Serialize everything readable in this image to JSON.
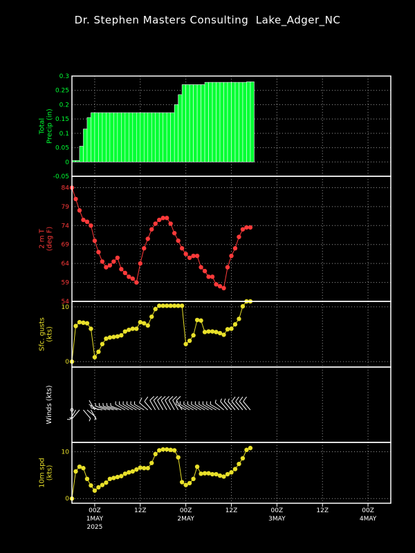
{
  "title": "Dr. Stephen Masters Consulting  Lake_Adger_NC",
  "colors": {
    "precip": "#00ff33",
    "temp": "#ff3a3a",
    "gust": "#e8e02a",
    "wind": "#ffffff",
    "spd": "#e8e02a"
  },
  "x_axis": {
    "ticks": [
      {
        "t": 6,
        "label": "00Z",
        "sub": "1MAY",
        "sub2": "2025"
      },
      {
        "t": 18,
        "label": "12Z",
        "sub": "",
        "sub2": ""
      },
      {
        "t": 30,
        "label": "00Z",
        "sub": "2MAY",
        "sub2": ""
      },
      {
        "t": 42,
        "label": "12Z",
        "sub": "",
        "sub2": ""
      },
      {
        "t": 54,
        "label": "00Z",
        "sub": "3MAY",
        "sub2": ""
      },
      {
        "t": 66,
        "label": "12Z",
        "sub": "",
        "sub2": ""
      },
      {
        "t": 78,
        "label": "00Z",
        "sub": "4MAY",
        "sub2": ""
      }
    ]
  },
  "chart_data": [
    {
      "type": "bar",
      "ylabel_lines": [
        "Total",
        "Precip (in)"
      ],
      "ylim": [
        -0.05,
        0.3
      ],
      "yticks": [
        -0.05,
        0,
        0.05,
        0.1,
        0.15,
        0.2,
        0.25,
        0.3
      ],
      "ytick_labels": [
        "-0.05",
        "0",
        "0.05",
        "0.1",
        "0.15",
        "0.2",
        "0.25",
        "0.3"
      ],
      "x": [
        0,
        1,
        2,
        3,
        4,
        5,
        6,
        7,
        8,
        9,
        10,
        11,
        12,
        13,
        14,
        15,
        16,
        17,
        18,
        19,
        20,
        21,
        22,
        23,
        24,
        25,
        26,
        27,
        28,
        29,
        30,
        31,
        32,
        33,
        34,
        35,
        36,
        37,
        38,
        39,
        40,
        41,
        42,
        43,
        44,
        45,
        46,
        47
      ],
      "values": [
        0.005,
        0.005,
        0.055,
        0.115,
        0.155,
        0.172,
        0.172,
        0.172,
        0.172,
        0.172,
        0.172,
        0.172,
        0.172,
        0.172,
        0.172,
        0.172,
        0.172,
        0.172,
        0.172,
        0.172,
        0.172,
        0.172,
        0.172,
        0.172,
        0.172,
        0.172,
        0.172,
        0.2,
        0.235,
        0.27,
        0.27,
        0.27,
        0.27,
        0.27,
        0.27,
        0.278,
        0.278,
        0.278,
        0.278,
        0.278,
        0.278,
        0.278,
        0.278,
        0.278,
        0.278,
        0.278,
        0.28,
        0.28
      ]
    },
    {
      "type": "line",
      "ylabel_lines": [
        "2 m T",
        "(deg F)"
      ],
      "ylim": [
        54,
        87
      ],
      "yticks": [
        54,
        59,
        64,
        69,
        74,
        79,
        84
      ],
      "ytick_labels": [
        "54",
        "59",
        "64",
        "69",
        "74",
        "79",
        "84"
      ],
      "x": [
        0,
        1,
        2,
        3,
        4,
        5,
        6,
        7,
        8,
        9,
        10,
        11,
        12,
        13,
        14,
        15,
        16,
        17,
        18,
        19,
        20,
        21,
        22,
        23,
        24,
        25,
        26,
        27,
        28,
        29,
        30,
        31,
        32,
        33,
        34,
        35,
        36,
        37,
        38,
        39,
        40,
        41,
        42,
        43,
        44,
        45,
        46,
        47
      ],
      "values": [
        84,
        81,
        78,
        75.5,
        75,
        74,
        70,
        67,
        64.5,
        63,
        63.5,
        64.5,
        65.5,
        62.5,
        61.5,
        60.5,
        60,
        59,
        64,
        68,
        70.5,
        73,
        74.5,
        75.5,
        76,
        76,
        74.5,
        72,
        70,
        68,
        66.5,
        65.5,
        66,
        66,
        63,
        62,
        60.5,
        60.5,
        58.5,
        58,
        57.5,
        63,
        66,
        68,
        71,
        73,
        73.5,
        73.5
      ]
    },
    {
      "type": "line",
      "ylabel_lines": [
        "Sfc. gusts",
        "(kts)"
      ],
      "ylim": [
        -1,
        11
      ],
      "yticks": [
        0,
        10
      ],
      "ytick_labels": [
        "0",
        "10"
      ],
      "x": [
        0,
        1,
        2,
        3,
        4,
        5,
        6,
        7,
        8,
        9,
        10,
        11,
        12,
        13,
        14,
        15,
        16,
        17,
        18,
        19,
        20,
        21,
        22,
        23,
        24,
        25,
        26,
        27,
        28,
        29,
        30,
        31,
        32,
        33,
        34,
        35,
        36,
        37,
        38,
        39,
        40,
        41,
        42,
        43,
        44,
        45,
        46,
        47
      ],
      "values": [
        0,
        6.5,
        7.2,
        7.1,
        7,
        6,
        0.8,
        1.8,
        3.2,
        4.2,
        4.4,
        4.5,
        4.6,
        4.8,
        5.5,
        5.8,
        6,
        6,
        7.2,
        7,
        6.6,
        8.2,
        9.6,
        10.2,
        10.2,
        10.2,
        10.2,
        10.2,
        10.2,
        10.2,
        3.2,
        3.8,
        4.8,
        7.6,
        7.5,
        5.4,
        5.5,
        5.5,
        5.4,
        5.2,
        4.9,
        5.9,
        6,
        6.8,
        7.8,
        10.1,
        11,
        11
      ]
    },
    {
      "type": "barbs",
      "ylabel_lines": [
        "Winds (kts)"
      ],
      "x": [
        0,
        1,
        2,
        3,
        4,
        5,
        6,
        7,
        8,
        9,
        10,
        11,
        12,
        13,
        14,
        15,
        16,
        17,
        18,
        19,
        20,
        21,
        22,
        23,
        24,
        25,
        26,
        27,
        28,
        29,
        30,
        31,
        32,
        33,
        34,
        35,
        36,
        37,
        38,
        39,
        40,
        41,
        42,
        43,
        44,
        45,
        46,
        47
      ],
      "dir_deg": [
        200,
        210,
        220,
        140,
        130,
        150,
        330,
        300,
        280,
        290,
        290,
        290,
        290,
        290,
        300,
        300,
        300,
        300,
        300,
        300,
        310,
        320,
        330,
        330,
        330,
        330,
        330,
        330,
        330,
        330,
        300,
        300,
        300,
        300,
        300,
        300,
        300,
        300,
        300,
        300,
        310,
        320,
        320,
        320,
        320,
        320,
        320,
        320
      ],
      "speed_kts": [
        0,
        6,
        7,
        4,
        3,
        2,
        1,
        2,
        3,
        4,
        4,
        5,
        5,
        5,
        5,
        5,
        6,
        6,
        6,
        7,
        8,
        9,
        10,
        10,
        10,
        10,
        10,
        10,
        10,
        9,
        3,
        4,
        4,
        7,
        6,
        5,
        5,
        5,
        5,
        5,
        5,
        6,
        6,
        7,
        8,
        10,
        11,
        11
      ]
    },
    {
      "type": "line",
      "ylabel_lines": [
        "10m spd",
        "(kts)"
      ],
      "ylim": [
        -1,
        12
      ],
      "yticks": [
        0,
        10
      ],
      "ytick_labels": [
        "0",
        "10"
      ],
      "x": [
        0,
        1,
        2,
        3,
        4,
        5,
        6,
        7,
        8,
        9,
        10,
        11,
        12,
        13,
        14,
        15,
        16,
        17,
        18,
        19,
        20,
        21,
        22,
        23,
        24,
        25,
        26,
        27,
        28,
        29,
        30,
        31,
        32,
        33,
        34,
        35,
        36,
        37,
        38,
        39,
        40,
        41,
        42,
        43,
        44,
        45,
        46,
        47
      ],
      "values": [
        0,
        5.8,
        6.8,
        6.5,
        4.2,
        2.8,
        1.7,
        2.4,
        2.9,
        3.4,
        4.2,
        4.4,
        4.6,
        4.8,
        5.3,
        5.6,
        5.8,
        6.2,
        6.6,
        6.5,
        6.5,
        7.6,
        9.5,
        10.3,
        10.5,
        10.5,
        10.4,
        10.3,
        8.8,
        3.5,
        2.9,
        3.3,
        4.2,
        6.8,
        5.3,
        5.4,
        5.4,
        5.2,
        5.2,
        4.9,
        4.7,
        5.2,
        5.6,
        6.3,
        7.4,
        8.6,
        10.4,
        10.8
      ]
    }
  ]
}
